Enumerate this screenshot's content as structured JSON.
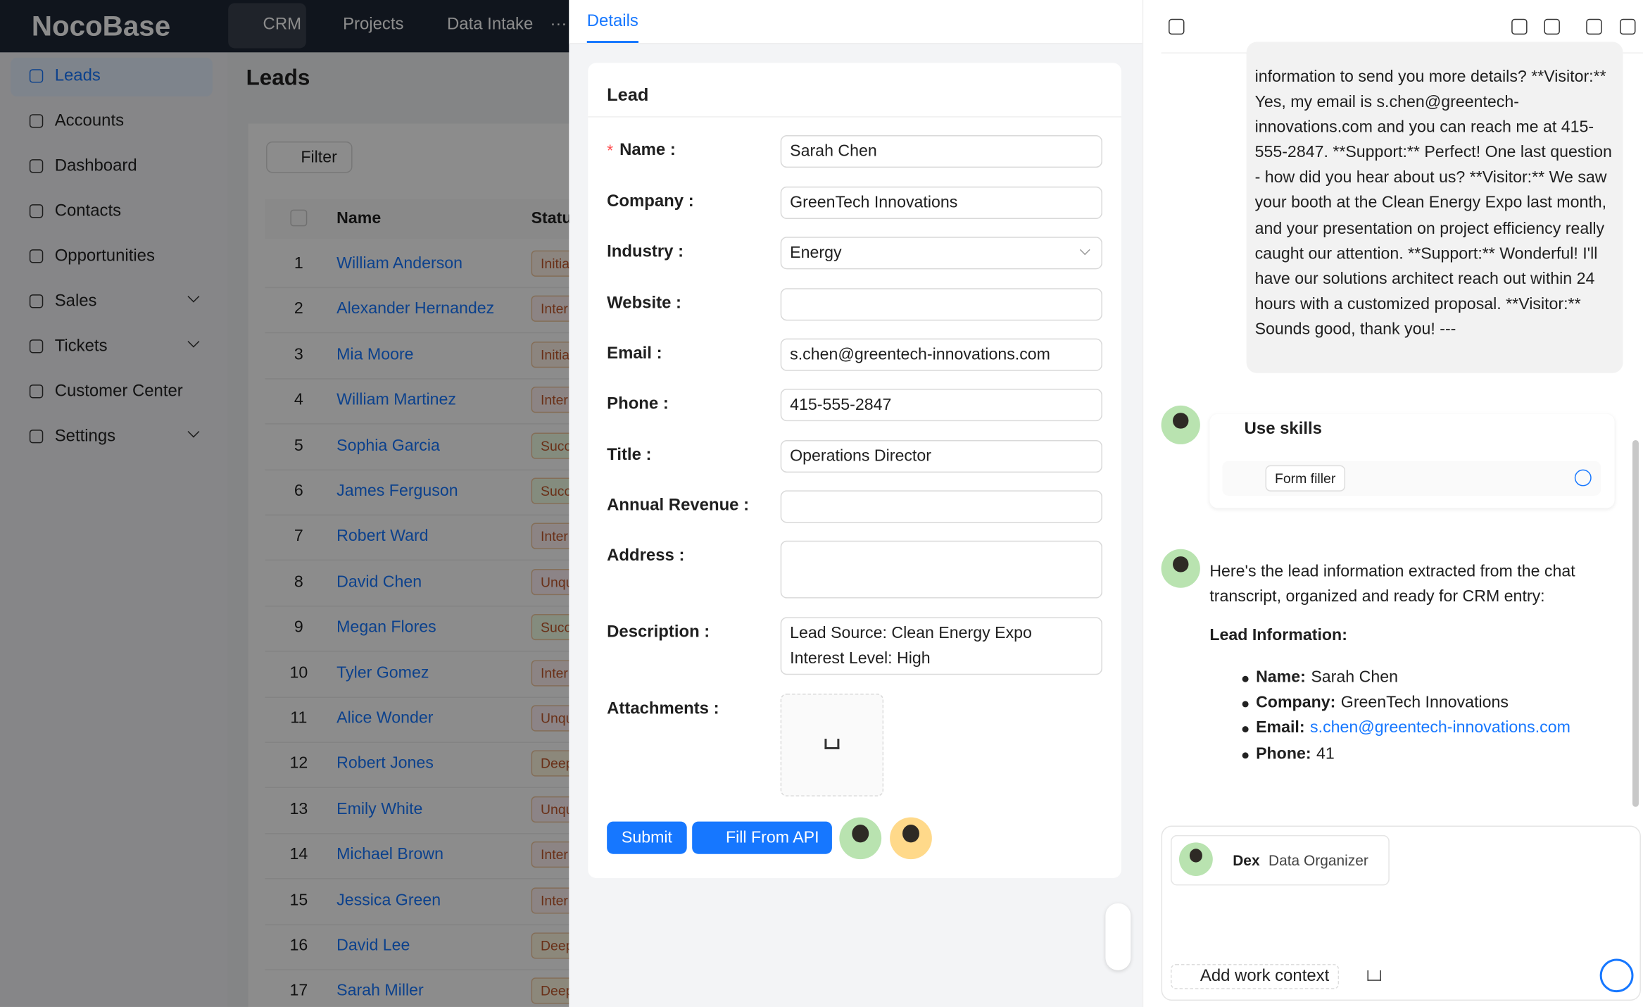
{
  "header": {
    "logo": "NocoBase",
    "nav": [
      "CRM",
      "Projects",
      "Data Intake",
      "···"
    ]
  },
  "sidebar": {
    "items": [
      "Leads",
      "Accounts",
      "Dashboard",
      "Contacts",
      "Opportunities",
      "Sales",
      "Tickets",
      "Customer Center",
      "Settings"
    ]
  },
  "leads": {
    "title": "Leads",
    "filter": "Filter",
    "columns": [
      "Name",
      "Statu"
    ],
    "rows": [
      [
        "1",
        "William Anderson",
        "Initia"
      ],
      [
        "2",
        "Alexander Hernandez",
        "Inter"
      ],
      [
        "3",
        "Mia Moore",
        "Initia"
      ],
      [
        "4",
        "William Martinez",
        "Inter"
      ],
      [
        "5",
        "Sophia Garcia",
        "Succ"
      ],
      [
        "6",
        "James Ferguson",
        "Succ"
      ],
      [
        "7",
        "Robert Ward",
        "Inter"
      ],
      [
        "8",
        "David Chen",
        "Unqu"
      ],
      [
        "9",
        "Megan Flores",
        "Succ"
      ],
      [
        "10",
        "Tyler Gomez",
        "Inter"
      ],
      [
        "11",
        "Alice Wonder",
        "Unqu"
      ],
      [
        "12",
        "Robert Jones",
        "Deep"
      ],
      [
        "13",
        "Emily White",
        "Unqu"
      ],
      [
        "14",
        "Michael Brown",
        "Inter"
      ],
      [
        "15",
        "Jessica Green",
        "Inter"
      ],
      [
        "16",
        "David Lee",
        "Deep"
      ],
      [
        "17",
        "Sarah Miller",
        "Deep"
      ]
    ]
  },
  "details": {
    "tab": "Details",
    "card_title": "Lead",
    "required_mark": "*",
    "fields": [
      [
        "Name :",
        "Sarah Chen"
      ],
      [
        "Company :",
        "GreenTech Innovations"
      ],
      [
        "Industry :",
        "Energy"
      ],
      [
        "Website :",
        ""
      ],
      [
        "Email :",
        "s.chen@greentech-innovations.com"
      ],
      [
        "Phone :",
        "415-555-2847"
      ],
      [
        "Title :",
        "Operations Director"
      ],
      [
        "Annual Revenue :",
        ""
      ],
      [
        "Address :",
        ""
      ]
    ],
    "description_label": "Description :",
    "description": [
      "Lead Source: Clean Energy Expo",
      "Interest Level: High"
    ],
    "attachments_label": "Attachments :",
    "submit": "Submit",
    "fill": "Fill From API"
  },
  "chat": {
    "transcript": "information to send you more details? **Visitor:** Yes, my email is s.chen@greentech-innovations.com and you can reach me at 415-555-2847. **Support:** Perfect! One last question - how did you hear about us? **Visitor:** We saw your booth at the Clean Energy Expo last month, and your presentation on project efficiency really caught our attention. **Support:** Wonderful! I'll have our solutions architect reach out within 24 hours with a customized proposal. **Visitor:** Sounds good, thank you! ---",
    "skills_title": "Use skills",
    "skill": "Form filler",
    "reply": "Here's the lead information extracted from the chat transcript, organized and ready for CRM entry:",
    "reply_heading": "Lead Information:",
    "items": [
      [
        "Name:",
        "Sarah Chen"
      ],
      [
        "Company:",
        "GreenTech Innovations"
      ],
      [
        "Email:",
        "s.chen@greentech-innovations.com"
      ],
      [
        "Phone:",
        "41"
      ]
    ],
    "agent_name": "Dex",
    "agent_role": "Data Organizer",
    "add_context": "Add work context"
  }
}
